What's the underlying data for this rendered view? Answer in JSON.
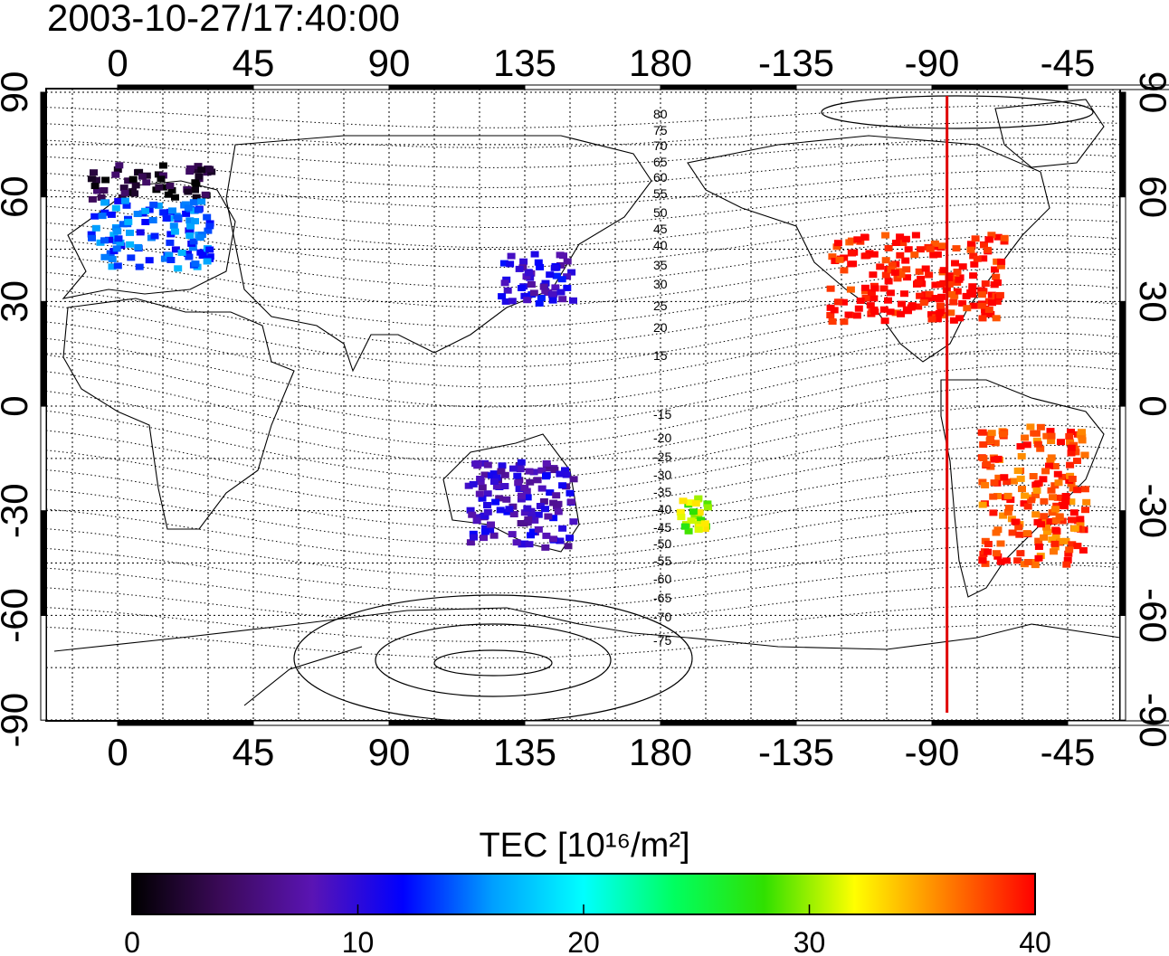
{
  "title": "2003-10-27/17:40:00",
  "map": {
    "lon_ticks": [
      "0",
      "45",
      "90",
      "135",
      "180",
      "-135",
      "-90",
      "-45"
    ],
    "lat_ticks": [
      "90",
      "60",
      "30",
      "0",
      "-30",
      "-60",
      "-90"
    ],
    "mlat_labels": [
      "80",
      "75",
      "70",
      "65",
      "60",
      "55",
      "50",
      "45",
      "40",
      "35",
      "30",
      "25",
      "20",
      "15",
      "-15",
      "-20",
      "-25",
      "-30",
      "-35",
      "-40",
      "-45",
      "-50",
      "-55",
      "-60",
      "-65",
      "-70",
      "-75"
    ],
    "noon_meridian_lon": -85,
    "colors": {
      "meridian": "#e00000",
      "frame": "#000000"
    }
  },
  "colorbar": {
    "title": "TEC  [10¹⁶/m²]",
    "ticks": [
      "0",
      "10",
      "20",
      "30",
      "40"
    ],
    "range": [
      0,
      40
    ],
    "stops": [
      "#000000",
      "#3c0a5a",
      "#5a14b4",
      "#0000ff",
      "#00a0ff",
      "#00ffff",
      "#00ff60",
      "#30e000",
      "#ffff00",
      "#ff8000",
      "#ff0000"
    ]
  },
  "tec_regions": [
    {
      "name": "north-america",
      "lon_range": [
        -125,
        -67
      ],
      "lat_range": [
        25,
        50
      ],
      "value": 40
    },
    {
      "name": "south-america",
      "lon_range": [
        -75,
        -40
      ],
      "lat_range": [
        -45,
        -5
      ],
      "value": 38
    },
    {
      "name": "scandinavia",
      "lon_range": [
        -10,
        30
      ],
      "lat_range": [
        60,
        70
      ],
      "value": 2
    },
    {
      "name": "europe",
      "lon_range": [
        -10,
        30
      ],
      "lat_range": [
        40,
        60
      ],
      "value": 14
    },
    {
      "name": "east-asia",
      "lon_range": [
        125,
        150
      ],
      "lat_range": [
        30,
        45
      ],
      "value": 10
    },
    {
      "name": "australia",
      "lon_range": [
        115,
        150
      ],
      "lat_range": [
        -40,
        -15
      ],
      "value": 9
    },
    {
      "name": "south-pacific",
      "lon_range": [
        185,
        195
      ],
      "lat_range": [
        -25,
        -35
      ],
      "value": 30
    }
  ]
}
